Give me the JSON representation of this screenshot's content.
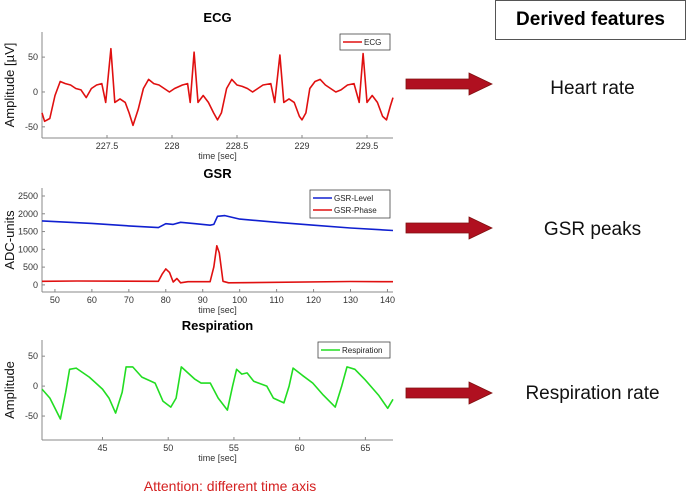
{
  "header": {
    "derived_features": "Derived features"
  },
  "features": [
    "Heart rate",
    "GSR peaks",
    "Respiration rate"
  ],
  "note": "Attention: different time axis",
  "colors": {
    "arrow": "#b01020",
    "ecg": "#e01010",
    "gsr_level": "#1020d0",
    "gsr_phase": "#e01010",
    "respiration": "#22dd22"
  },
  "chart_data": [
    {
      "type": "line",
      "title": "ECG",
      "xlabel": "time [sec]",
      "ylabel": "Amplitude [µV]",
      "xlim": [
        227.0,
        229.7
      ],
      "ylim": [
        -66,
        86
      ],
      "xticks": [
        227.5,
        228,
        228.5,
        229,
        229.5
      ],
      "xtick_labels": [
        "227.5",
        "228",
        "228.5",
        "229",
        "229.5"
      ],
      "yticks": [
        -50,
        0,
        50
      ],
      "ytick_labels": [
        "-50",
        "0",
        "50"
      ],
      "legend": "top-right",
      "series": [
        {
          "name": "ECG",
          "color": "#e01010",
          "x": [
            227.0,
            227.02,
            227.06,
            227.1,
            227.14,
            227.18,
            227.22,
            227.26,
            227.3,
            227.34,
            227.38,
            227.42,
            227.46,
            227.49,
            227.53,
            227.56,
            227.6,
            227.64,
            227.67,
            227.7,
            227.74,
            227.78,
            227.82,
            227.86,
            227.9,
            227.94,
            227.98,
            228.02,
            228.08,
            228.12,
            228.14,
            228.17,
            228.2,
            228.24,
            228.28,
            228.32,
            228.35,
            228.38,
            228.42,
            228.46,
            228.5,
            228.54,
            228.58,
            228.62,
            228.66,
            228.7,
            228.76,
            228.79,
            228.83,
            228.86,
            228.9,
            228.94,
            228.98,
            229.0,
            229.03,
            229.06,
            229.1,
            229.14,
            229.18,
            229.22,
            229.26,
            229.3,
            229.35,
            229.4,
            229.44,
            229.47,
            229.5,
            229.54,
            229.58,
            229.62,
            229.65,
            229.68,
            229.7
          ],
          "y": [
            -30,
            -42,
            -38,
            -5,
            15,
            12,
            10,
            5,
            3,
            -8,
            5,
            10,
            12,
            -15,
            62,
            -15,
            -10,
            -15,
            -30,
            -48,
            -25,
            5,
            18,
            12,
            10,
            5,
            0,
            5,
            10,
            12,
            -15,
            57,
            -15,
            -5,
            -15,
            -30,
            -40,
            -30,
            5,
            18,
            10,
            8,
            5,
            0,
            5,
            10,
            12,
            -15,
            53,
            -15,
            -10,
            -15,
            -35,
            -40,
            -30,
            5,
            15,
            18,
            10,
            5,
            0,
            3,
            10,
            12,
            -15,
            55,
            -15,
            -5,
            -15,
            -35,
            -40,
            -20,
            -8
          ]
        }
      ]
    },
    {
      "type": "line",
      "title": "GSR",
      "xlabel": "time [sec]",
      "ylabel": "ADC-units",
      "xlim": [
        46.5,
        141.5
      ],
      "ylim": [
        -200,
        2725
      ],
      "xticks": [
        50,
        60,
        70,
        80,
        90,
        100,
        110,
        120,
        130,
        140
      ],
      "xtick_labels": [
        "50",
        "60",
        "70",
        "80",
        "90",
        "100",
        "110",
        "120",
        "130",
        "140"
      ],
      "yticks": [
        0,
        500,
        1000,
        1500,
        2000,
        2500
      ],
      "ytick_labels": [
        "0",
        "500",
        "1000",
        "1500",
        "2000",
        "2500"
      ],
      "legend": "top-right",
      "series": [
        {
          "name": "GSR-Level",
          "color": "#1020d0",
          "x": [
            46.5,
            60,
            70,
            78,
            80,
            82,
            84,
            88,
            92,
            93,
            94,
            96,
            100,
            110,
            120,
            130,
            141.5
          ],
          "y": [
            1800,
            1730,
            1660,
            1610,
            1720,
            1700,
            1760,
            1720,
            1680,
            1700,
            1930,
            1950,
            1850,
            1760,
            1680,
            1600,
            1530
          ]
        },
        {
          "name": "GSR-Phase",
          "color": "#e01010",
          "x": [
            46.5,
            56,
            78,
            79,
            80,
            81,
            82,
            83,
            84,
            86,
            92,
            93,
            93.8,
            94.5,
            95.5,
            97,
            130,
            141.5
          ],
          "y": [
            100,
            110,
            100,
            300,
            450,
            350,
            80,
            180,
            60,
            90,
            90,
            500,
            1100,
            900,
            100,
            60,
            95,
            90
          ]
        }
      ]
    },
    {
      "type": "line",
      "title": "Respiration",
      "xlabel": "time [sec]",
      "ylabel": "Amplitude",
      "xlim": [
        40.4,
        67.1
      ],
      "ylim": [
        -90,
        77
      ],
      "xticks": [
        45,
        50,
        55,
        60,
        65
      ],
      "xtick_labels": [
        "45",
        "50",
        "55",
        "60",
        "65"
      ],
      "yticks": [
        -50,
        0,
        50
      ],
      "ytick_labels": [
        "-50",
        "0",
        "50"
      ],
      "legend": "top-right",
      "series": [
        {
          "name": "Respiration",
          "color": "#22dd22",
          "x": [
            40.4,
            41,
            41.8,
            42.2,
            42.5,
            43,
            44,
            45,
            45.5,
            46,
            46.5,
            46.8,
            47.3,
            48,
            49,
            49.6,
            50.2,
            50.6,
            51,
            51.5,
            52,
            52.5,
            53.2,
            53.8,
            54.5,
            54.9,
            55.2,
            55.6,
            56,
            56.5,
            57.5,
            58,
            58.8,
            59.2,
            59.5,
            60.2,
            61,
            61.8,
            62.7,
            63.2,
            63.6,
            64.2,
            65,
            66,
            66.7,
            67.1
          ],
          "y": [
            -5,
            -20,
            -55,
            -10,
            28,
            30,
            15,
            -5,
            -20,
            -45,
            -10,
            32,
            32,
            15,
            5,
            -25,
            -35,
            -20,
            32,
            22,
            12,
            5,
            5,
            -20,
            -40,
            0,
            28,
            20,
            22,
            8,
            0,
            -20,
            -28,
            0,
            30,
            18,
            5,
            -15,
            -35,
            0,
            32,
            28,
            10,
            -15,
            -37,
            -22
          ]
        }
      ]
    }
  ]
}
